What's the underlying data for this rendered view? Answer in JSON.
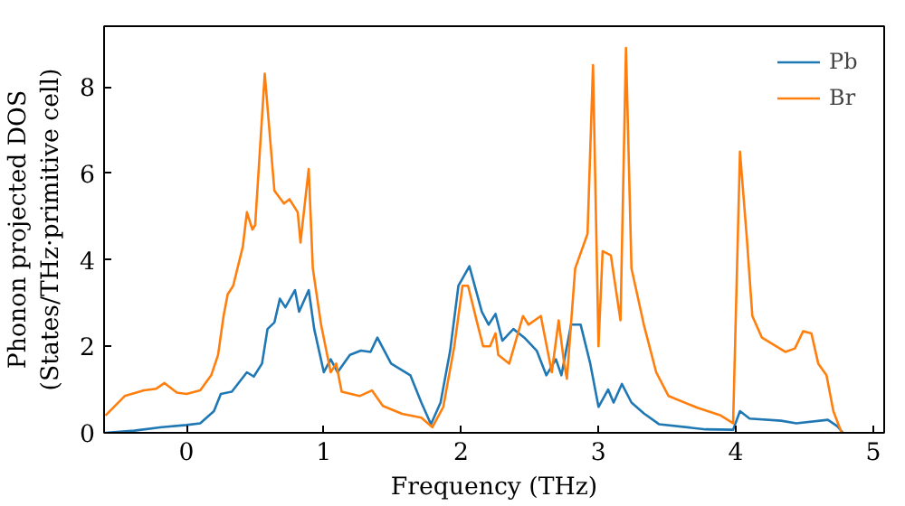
{
  "chart_data": {
    "type": "line",
    "xlabel": "Frequency (THz)",
    "ylabel": "Phonon projected DOS\n(States/THz·primitive cell)",
    "xlim": [
      -0.6,
      5.08
    ],
    "ylim": [
      0,
      9.4
    ],
    "xticks": [
      0,
      1,
      2,
      3,
      4,
      5
    ],
    "yticks": [
      0,
      2,
      4,
      6,
      8
    ],
    "legend": "top right",
    "grid": false,
    "series": [
      {
        "name": "Pb",
        "color": "#1f77b4",
        "x": [
          -0.59,
          -0.38,
          -0.18,
          0,
          0.1,
          0.2,
          0.25,
          0.33,
          0.44,
          0.49,
          0.55,
          0.59,
          0.64,
          0.68,
          0.72,
          0.79,
          0.82,
          0.89,
          0.93,
          1.0,
          1.05,
          1.1,
          1.19,
          1.27,
          1.34,
          1.39,
          1.49,
          1.63,
          1.71,
          1.78,
          1.85,
          1.92,
          1.98,
          2.06,
          2.15,
          2.2,
          2.25,
          2.3,
          2.38,
          2.46,
          2.55,
          2.62,
          2.69,
          2.73,
          2.8,
          2.87,
          2.94,
          3.0,
          3.07,
          3.11,
          3.17,
          3.24,
          3.33,
          3.44,
          3.78,
          3.98,
          4.03,
          4.1,
          4.33,
          4.44,
          4.67,
          4.74,
          4.78
        ],
        "values": [
          0,
          0.05,
          0.13,
          0.18,
          0.22,
          0.5,
          0.9,
          0.95,
          1.4,
          1.3,
          1.6,
          2.4,
          2.55,
          3.1,
          2.9,
          3.3,
          2.8,
          3.3,
          2.4,
          1.4,
          1.7,
          1.4,
          1.8,
          1.9,
          1.87,
          2.2,
          1.6,
          1.33,
          0.7,
          0.2,
          0.7,
          1.9,
          3.4,
          3.85,
          2.8,
          2.5,
          2.75,
          2.13,
          2.4,
          2.2,
          1.9,
          1.33,
          1.7,
          1.33,
          2.5,
          2.5,
          1.6,
          0.6,
          1.0,
          0.7,
          1.13,
          0.7,
          0.45,
          0.2,
          0.08,
          0.07,
          0.5,
          0.33,
          0.28,
          0.22,
          0.3,
          0.15,
          0
        ]
      },
      {
        "name": "Br",
        "color": "#ff7f0e",
        "x": [
          -0.59,
          -0.45,
          -0.31,
          -0.22,
          -0.16,
          -0.07,
          0,
          0.1,
          0.18,
          0.23,
          0.27,
          0.3,
          0.34,
          0.41,
          0.44,
          0.48,
          0.5,
          0.57,
          0.64,
          0.71,
          0.75,
          0.81,
          0.83,
          0.89,
          0.92,
          0.98,
          1.05,
          1.09,
          1.13,
          1.26,
          1.35,
          1.43,
          1.57,
          1.71,
          1.79,
          1.87,
          1.95,
          2.01,
          2.05,
          2.12,
          2.16,
          2.21,
          2.25,
          2.27,
          2.35,
          2.45,
          2.49,
          2.58,
          2.66,
          2.71,
          2.75,
          2.77,
          2.83,
          2.92,
          2.96,
          3.0,
          3.03,
          3.09,
          3.16,
          3.2,
          3.24,
          3.33,
          3.42,
          3.51,
          3.72,
          3.89,
          3.98,
          4.03,
          4.08,
          4.12,
          4.19,
          4.36,
          4.43,
          4.49,
          4.55,
          4.6,
          4.66,
          4.71,
          4.77
        ],
        "values": [
          0.4,
          0.85,
          0.98,
          1.02,
          1.15,
          0.93,
          0.9,
          0.98,
          1.33,
          1.8,
          2.7,
          3.2,
          3.4,
          4.3,
          5.1,
          4.7,
          4.8,
          8.3,
          5.6,
          5.3,
          5.4,
          5.1,
          4.4,
          6.1,
          3.8,
          2.5,
          1.4,
          1.6,
          0.95,
          0.85,
          0.98,
          0.62,
          0.44,
          0.35,
          0.13,
          0.6,
          2.0,
          3.4,
          3.4,
          2.5,
          2.0,
          2.0,
          2.3,
          1.8,
          1.6,
          2.7,
          2.5,
          2.7,
          1.4,
          2.6,
          1.6,
          1.25,
          3.8,
          4.6,
          8.5,
          2.0,
          4.2,
          4.1,
          2.6,
          8.9,
          3.8,
          2.5,
          1.4,
          0.85,
          0.58,
          0.4,
          0.22,
          6.5,
          4.5,
          2.7,
          2.2,
          1.87,
          1.95,
          2.35,
          2.3,
          1.6,
          1.33,
          0.5,
          0
        ]
      }
    ]
  }
}
